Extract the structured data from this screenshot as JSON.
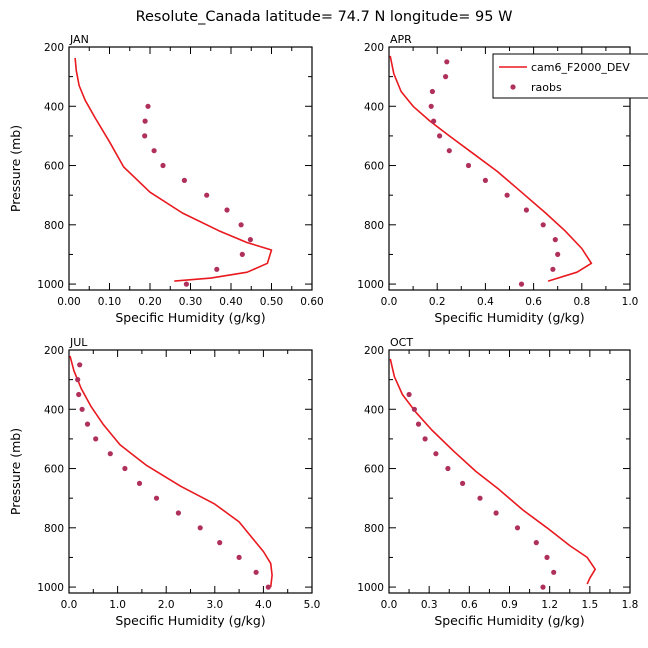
{
  "figure": {
    "title": "Resolute_Canada   latitude= 74.7 N longitude= 95 W"
  },
  "colors": {
    "model": "#e8191f",
    "obs": "#b0305c",
    "axis": "#000000"
  },
  "chart_data": [
    {
      "type": "line",
      "panel": "JAN",
      "xlabel": "Specific Humidity (g/kg)",
      "ylabel": "Pressure (mb)",
      "xlim": [
        0,
        0.6
      ],
      "ylim": [
        200,
        1020
      ],
      "xticks": [
        0,
        0.1,
        0.2,
        0.3,
        0.4,
        0.5,
        0.6
      ],
      "xtick_labels": [
        "0.00",
        "0.10",
        "0.20",
        "0.30",
        "0.40",
        "0.50",
        "0.60"
      ],
      "yticks": [
        200,
        400,
        600,
        800,
        1000
      ],
      "ytick_labels": [
        "200",
        "400",
        "600",
        "800",
        "1000"
      ],
      "legend": null,
      "series": [
        {
          "name": "cam6_F2000_DEV",
          "kind": "line",
          "points": [
            [
              0.015,
              237
            ],
            [
              0.018,
              280
            ],
            [
              0.025,
              330
            ],
            [
              0.04,
              380
            ],
            [
              0.065,
              440
            ],
            [
              0.1,
              520
            ],
            [
              0.135,
              605
            ],
            [
              0.2,
              690
            ],
            [
              0.28,
              760
            ],
            [
              0.37,
              820
            ],
            [
              0.44,
              860
            ],
            [
              0.5,
              885
            ],
            [
              0.49,
              930
            ],
            [
              0.44,
              960
            ],
            [
              0.35,
              980
            ],
            [
              0.26,
              990
            ]
          ]
        },
        {
          "name": "raobs",
          "kind": "scatter",
          "points": [
            [
              0.195,
              400
            ],
            [
              0.188,
              450
            ],
            [
              0.187,
              500
            ],
            [
              0.21,
              550
            ],
            [
              0.232,
              600
            ],
            [
              0.285,
              650
            ],
            [
              0.34,
              700
            ],
            [
              0.39,
              750
            ],
            [
              0.425,
              800
            ],
            [
              0.448,
              850
            ],
            [
              0.428,
              900
            ],
            [
              0.365,
              950
            ],
            [
              0.29,
              1000
            ]
          ]
        }
      ]
    },
    {
      "type": "line",
      "panel": "APR",
      "xlabel": "Specific Humidity (g/kg)",
      "ylabel": "",
      "xlim": [
        0,
        1.0
      ],
      "ylim": [
        200,
        1020
      ],
      "xticks": [
        0,
        0.2,
        0.4,
        0.6,
        0.8,
        1.0
      ],
      "xtick_labels": [
        "0.0",
        "0.2",
        "0.4",
        "0.6",
        "0.8",
        "1.0"
      ],
      "yticks": [
        200,
        400,
        600,
        800,
        1000
      ],
      "ytick_labels": [
        "200",
        "400",
        "600",
        "800",
        "1000"
      ],
      "legend": {
        "location": "top-right",
        "entries": [
          {
            "label": "cam6_F2000_DEV",
            "kind": "line"
          },
          {
            "label": "raobs",
            "kind": "marker"
          }
        ]
      },
      "series": [
        {
          "name": "cam6_F2000_DEV",
          "kind": "line",
          "points": [
            [
              0.005,
              230
            ],
            [
              0.02,
              290
            ],
            [
              0.05,
              350
            ],
            [
              0.1,
              400
            ],
            [
              0.17,
              450
            ],
            [
              0.25,
              500
            ],
            [
              0.35,
              560
            ],
            [
              0.45,
              620
            ],
            [
              0.55,
              690
            ],
            [
              0.65,
              760
            ],
            [
              0.73,
              820
            ],
            [
              0.8,
              880
            ],
            [
              0.84,
              930
            ],
            [
              0.78,
              960
            ],
            [
              0.66,
              990
            ]
          ]
        },
        {
          "name": "raobs",
          "kind": "scatter",
          "points": [
            [
              0.24,
              250
            ],
            [
              0.235,
              300
            ],
            [
              0.18,
              350
            ],
            [
              0.175,
              400
            ],
            [
              0.185,
              450
            ],
            [
              0.21,
              500
            ],
            [
              0.25,
              550
            ],
            [
              0.33,
              600
            ],
            [
              0.4,
              650
            ],
            [
              0.49,
              700
            ],
            [
              0.57,
              750
            ],
            [
              0.64,
              800
            ],
            [
              0.69,
              850
            ],
            [
              0.7,
              900
            ],
            [
              0.68,
              950
            ],
            [
              0.55,
              1000
            ]
          ]
        }
      ]
    },
    {
      "type": "line",
      "panel": "JUL",
      "xlabel": "Specific Humidity (g/kg)",
      "ylabel": "Pressure (mb)",
      "xlim": [
        0,
        5.0
      ],
      "ylim": [
        200,
        1020
      ],
      "xticks": [
        0,
        1,
        2,
        3,
        4,
        5
      ],
      "xtick_labels": [
        "0.0",
        "1.0",
        "2.0",
        "3.0",
        "4.0",
        "5.0"
      ],
      "yticks": [
        200,
        400,
        600,
        800,
        1000
      ],
      "ytick_labels": [
        "200",
        "400",
        "600",
        "800",
        "1000"
      ],
      "legend": null,
      "series": [
        {
          "name": "cam6_F2000_DEV",
          "kind": "line",
          "points": [
            [
              0.02,
              220
            ],
            [
              0.1,
              270
            ],
            [
              0.25,
              330
            ],
            [
              0.45,
              390
            ],
            [
              0.7,
              450
            ],
            [
              1.05,
              520
            ],
            [
              1.6,
              590
            ],
            [
              2.3,
              660
            ],
            [
              3.0,
              720
            ],
            [
              3.5,
              780
            ],
            [
              3.8,
              840
            ],
            [
              4.0,
              880
            ],
            [
              4.15,
              920
            ],
            [
              4.18,
              960
            ],
            [
              4.15,
              1000
            ]
          ]
        },
        {
          "name": "raobs",
          "kind": "scatter",
          "points": [
            [
              0.22,
              250
            ],
            [
              0.18,
              300
            ],
            [
              0.2,
              350
            ],
            [
              0.27,
              400
            ],
            [
              0.38,
              450
            ],
            [
              0.55,
              500
            ],
            [
              0.85,
              550
            ],
            [
              1.15,
              600
            ],
            [
              1.45,
              650
            ],
            [
              1.8,
              700
            ],
            [
              2.25,
              750
            ],
            [
              2.7,
              800
            ],
            [
              3.1,
              850
            ],
            [
              3.5,
              900
            ],
            [
              3.85,
              950
            ],
            [
              4.1,
              1000
            ]
          ]
        }
      ]
    },
    {
      "type": "line",
      "panel": "OCT",
      "xlabel": "Specific Humidity (g/kg)",
      "ylabel": "",
      "xlim": [
        0,
        1.8
      ],
      "ylim": [
        200,
        1020
      ],
      "xticks": [
        0,
        0.3,
        0.6,
        0.9,
        1.2,
        1.5,
        1.8
      ],
      "xtick_labels": [
        "0.0",
        "0.3",
        "0.6",
        "0.9",
        "1.2",
        "1.5",
        "1.8"
      ],
      "yticks": [
        200,
        400,
        600,
        800,
        1000
      ],
      "ytick_labels": [
        "200",
        "400",
        "600",
        "800",
        "1000"
      ],
      "legend": null,
      "series": [
        {
          "name": "cam6_F2000_DEV",
          "kind": "line",
          "points": [
            [
              0.01,
              230
            ],
            [
              0.04,
              290
            ],
            [
              0.1,
              350
            ],
            [
              0.2,
              410
            ],
            [
              0.32,
              470
            ],
            [
              0.48,
              540
            ],
            [
              0.65,
              610
            ],
            [
              0.82,
              670
            ],
            [
              1.0,
              740
            ],
            [
              1.18,
              800
            ],
            [
              1.35,
              860
            ],
            [
              1.48,
              900
            ],
            [
              1.54,
              940
            ],
            [
              1.5,
              970
            ],
            [
              1.48,
              990
            ]
          ]
        },
        {
          "name": "raobs",
          "kind": "scatter",
          "points": [
            [
              0.15,
              350
            ],
            [
              0.19,
              400
            ],
            [
              0.22,
              450
            ],
            [
              0.27,
              500
            ],
            [
              0.35,
              550
            ],
            [
              0.44,
              600
            ],
            [
              0.55,
              650
            ],
            [
              0.68,
              700
            ],
            [
              0.8,
              750
            ],
            [
              0.96,
              800
            ],
            [
              1.1,
              850
            ],
            [
              1.18,
              900
            ],
            [
              1.23,
              950
            ],
            [
              1.15,
              1000
            ]
          ]
        }
      ]
    }
  ]
}
